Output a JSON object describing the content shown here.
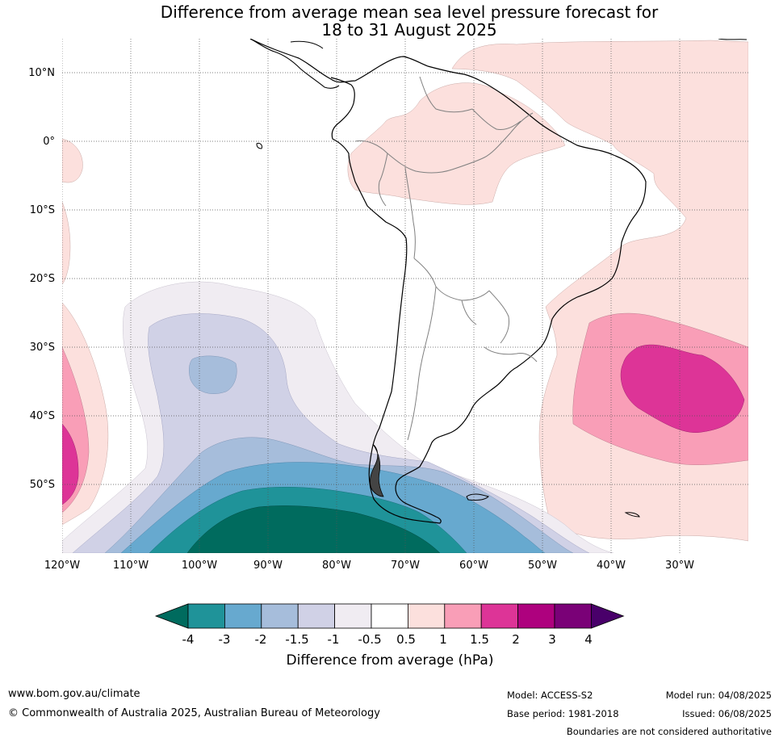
{
  "title": {
    "line1": "Difference from average mean sea level pressure forecast for",
    "line2": "18 to 31 August 2025"
  },
  "map": {
    "lat_labels": [
      "10°N",
      "0°",
      "10°S",
      "20°S",
      "30°S",
      "40°S",
      "50°S"
    ],
    "lon_labels": [
      "120°W",
      "110°W",
      "100°W",
      "90°W",
      "80°W",
      "70°W",
      "60°W",
      "50°W",
      "40°W",
      "30°W"
    ],
    "gridline_style": "dotted"
  },
  "colorbar": {
    "ticks": [
      "-4",
      "-3",
      "-2",
      "-1.5",
      "-1",
      "-0.5",
      "0.5",
      "1",
      "1.5",
      "2",
      "3",
      "4"
    ],
    "label": "Difference from average (hPa)",
    "colors": [
      "#006b5e",
      "#1f9399",
      "#67a9cf",
      "#a6bddb",
      "#d0d1e6",
      "#f0ecf2",
      "#ffffff",
      "#fce0dd",
      "#f99eb7",
      "#dd3497",
      "#ae017e",
      "#7a0177",
      "#49006a"
    ]
  },
  "footer": {
    "website": "www.bom.gov.au/climate",
    "copyright": "© Commonwealth of Australia 2025, Australian Bureau of Meteorology",
    "model": "Model: ACCESS-S2",
    "base_period": "Base period: 1981-2018",
    "model_run": "Model run: 04/08/2025",
    "issued": "Issued: 06/08/2025",
    "boundaries_note": "Boundaries are not considered authoritative"
  }
}
